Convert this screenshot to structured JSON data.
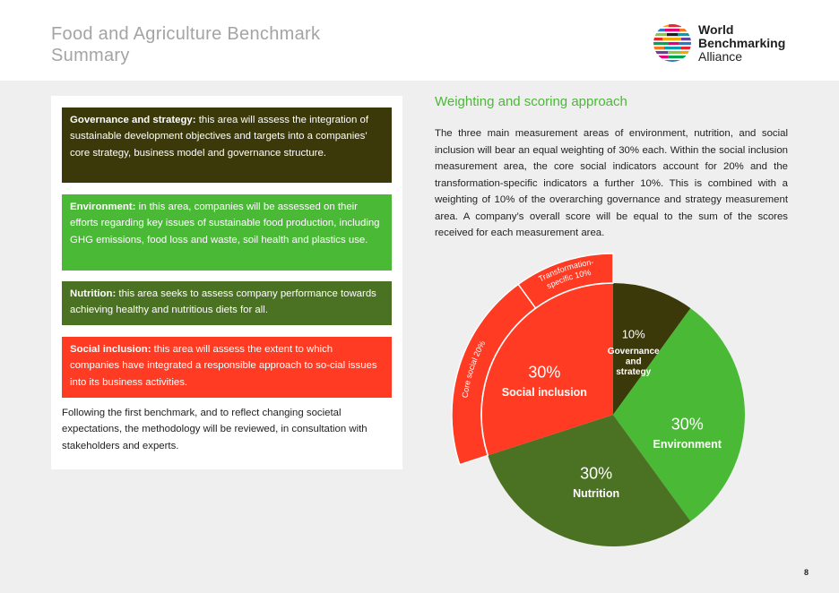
{
  "header": {
    "title_line1": "Food and Agriculture Benchmark",
    "title_line2": "Summary",
    "logo": {
      "line1": "World",
      "line2": "Benchmarking",
      "line3": "Alliance",
      "icon": "wba-striped-globe-icon"
    }
  },
  "areas": [
    {
      "key": "governance",
      "label": "Governance and strategy:",
      "text": " this area will assess the integration of sustainable development objectives and targets into a companies’ core strategy, business model and governance structure.",
      "color": "#3b3909"
    },
    {
      "key": "environment",
      "label": "Environment:",
      "text": " in this area, companies will be assessed on their efforts regarding key issues of sustainable food production, including GHG emissions, food loss and waste, soil health and plastics use.",
      "color": "#4ab936"
    },
    {
      "key": "nutrition",
      "label": "Nutrition:",
      "text": " this area seeks to assess company performance towards achieving healthy and nutritious diets for all.",
      "color": "#4b7223"
    },
    {
      "key": "social",
      "label": "Social inclusion:",
      "text": " this area will assess the extent to which companies have integrated a responsible approach to so-cial issues into its business activities.",
      "color": "#ff3b24"
    }
  ],
  "follow_text": "Following the first benchmark, and to reflect changing societal expectations, the methodology will be reviewed, in consultation with stakeholders and experts.",
  "weighting": {
    "title": "Weighting and scoring approach",
    "body": "The three main measurement areas of environment, nutrition, and social inclusion will bear an equal weighting of 30% each. Within the social inclusion measurement area, the core social indicators account for 20% and the transformation-specific indicators a further 10%. This is combined with a weighting of 10% of the overarching governance and strategy measurement area. A company’s overall score will be equal to the sum of the scores received for each measurement area."
  },
  "chart_data": {
    "type": "pie",
    "slices": [
      {
        "pct": "10%",
        "label_lines": [
          "Governance",
          "and",
          "strategy"
        ],
        "value": 10,
        "color": "#3b3909"
      },
      {
        "pct": "30%",
        "label_lines": [
          "Environment"
        ],
        "value": 30,
        "color": "#4ab936"
      },
      {
        "pct": "30%",
        "label_lines": [
          "Nutrition"
        ],
        "value": 30,
        "color": "#4b7223"
      },
      {
        "pct": "30%",
        "label_lines": [
          "Social inclusion"
        ],
        "value": 30,
        "color": "#ff3b24"
      }
    ],
    "sub_slices": [
      {
        "parent": "Social inclusion",
        "label": "Core social 20%",
        "value": 20,
        "color": "#ff3b24"
      },
      {
        "parent": "Social inclusion",
        "label_lines": [
          "Transformation-",
          "specific 10%"
        ],
        "value": 10,
        "color": "#ff3b24"
      }
    ]
  },
  "page_number": "8"
}
